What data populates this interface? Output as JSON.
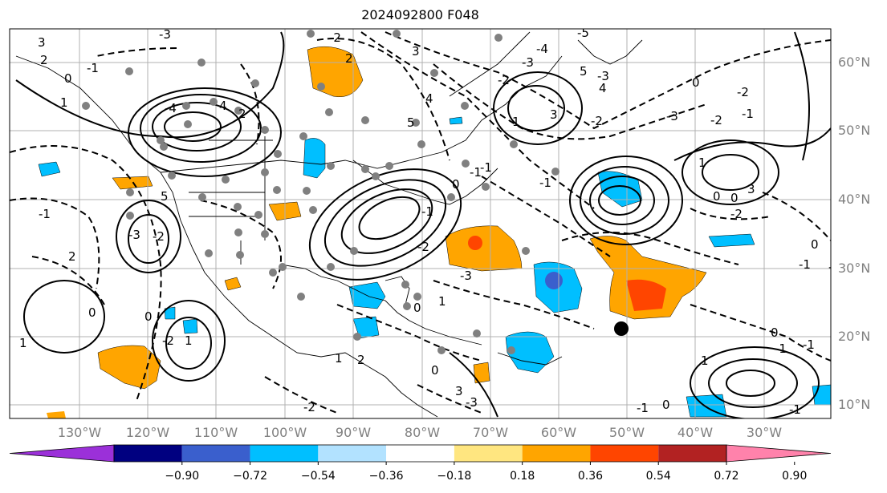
{
  "title": "2024092800 F048",
  "lat_labels": [
    "60°N",
    "50°N",
    "40°N",
    "30°N",
    "20°N",
    "10°N"
  ],
  "lon_labels": [
    "130°W",
    "120°W",
    "110°W",
    "100°W",
    "90°W",
    "80°W",
    "70°W",
    "60°W",
    "50°W",
    "40°W",
    "30°W"
  ],
  "colorbar": {
    "ticks": [
      "−0.90",
      "−0.72",
      "−0.54",
      "−0.36",
      "−0.18",
      "0.18",
      "0.36",
      "0.54",
      "0.72",
      "0.90"
    ],
    "colors": [
      "#9b30d9",
      "#000080",
      "#3a5fcd",
      "#00bfff",
      "#b2e2ff",
      "#ffffff",
      "#ffe680",
      "#ffa500",
      "#ff4500",
      "#b22222",
      "#ff82ab"
    ]
  },
  "contour_labels": [
    "3",
    "2",
    "-1",
    "0",
    "1",
    "-3",
    "4",
    "2",
    "-4",
    "-2",
    "2",
    "3",
    "4",
    "5",
    "-5",
    "-4",
    "-3",
    "-2",
    "5",
    "-3",
    "4",
    "-2",
    "3",
    "1",
    "-3",
    "-2",
    "-1",
    "-2",
    "0",
    "0",
    "3",
    "-1",
    "-1",
    "-1",
    "0",
    "-1",
    "-2",
    "-3",
    "0",
    "1",
    "1",
    "2",
    "0",
    "3",
    "-3",
    "-2",
    "-1",
    "0",
    "-1",
    "-1",
    "0",
    "1",
    "-1",
    "1",
    "0",
    "-2",
    "0",
    "-2",
    "-1",
    "-1",
    "2",
    "5",
    "-2",
    "-3",
    "-2",
    "1",
    "0",
    "0",
    "1"
  ],
  "fill_colors": {
    "positive_low": "#ffa500",
    "positive_high": "#ff4500",
    "negative_low": "#00bfff",
    "negative_high": "#3a5fcd"
  },
  "marker_color": "#808080"
}
